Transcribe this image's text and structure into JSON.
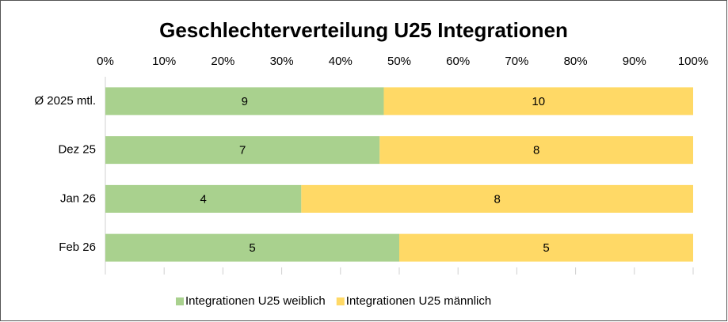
{
  "chart_data": {
    "type": "bar",
    "orientation": "horizontal",
    "stacking": "percent",
    "title": "Geschlechterverteilung U25 Integrationen",
    "categories": [
      "Ø 2025 mtl.",
      "Dez 25",
      "Jan 26",
      "Feb 26"
    ],
    "series": [
      {
        "name": "Integrationen U25 weiblich",
        "color": "#a9d18e",
        "values": [
          9,
          7,
          4,
          5
        ]
      },
      {
        "name": "Integrationen U25 männlich",
        "color": "#ffd966",
        "values": [
          10,
          8,
          8,
          5
        ]
      }
    ],
    "xlim": [
      0,
      100
    ],
    "xticks": [
      {
        "value": 0,
        "label": "0%"
      },
      {
        "value": 10,
        "label": "10%"
      },
      {
        "value": 20,
        "label": "20%"
      },
      {
        "value": 30,
        "label": "30%"
      },
      {
        "value": 40,
        "label": "40%"
      },
      {
        "value": 50,
        "label": "50%"
      },
      {
        "value": 60,
        "label": "60%"
      },
      {
        "value": 70,
        "label": "70%"
      },
      {
        "value": 80,
        "label": "80%"
      },
      {
        "value": 90,
        "label": "90%"
      },
      {
        "value": 100,
        "label": "100%"
      }
    ],
    "legend": "bottom"
  }
}
